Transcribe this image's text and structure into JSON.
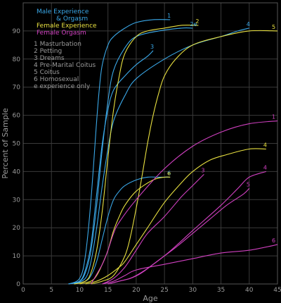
{
  "chart_data": {
    "type": "line",
    "xlabel": "Age",
    "ylabel": "Percent of Sample",
    "xlim": [
      0,
      45
    ],
    "ylim": [
      0,
      100
    ],
    "xticks": [
      0,
      5,
      10,
      15,
      20,
      25,
      30,
      35,
      40,
      45
    ],
    "yticks": [
      0,
      10,
      20,
      30,
      40,
      50,
      60,
      70,
      80,
      90
    ],
    "grid": true,
    "legend_placement": "top-left",
    "legend": {
      "groups": [
        {
          "label": "Male Experience",
          "label2": "& Orgasm",
          "color": "#3aa8e8"
        },
        {
          "label": "Female Experience",
          "color": "#e8e040"
        },
        {
          "label": "Female Orgasm",
          "color": "#d040c0"
        }
      ],
      "keys": [
        "1 Masturbation",
        "2 Petting",
        "3 Dreams",
        "4 Pre-Marital Coitus",
        "5 Coitus",
        "6 Homosexual",
        "e experience only"
      ]
    },
    "series": [
      {
        "group": "male",
        "label": "1",
        "color": "#3aa8e8",
        "x": [
          8,
          10,
          11,
          12,
          13,
          13.5,
          14,
          15,
          16,
          18,
          20,
          23,
          26
        ],
        "y": [
          0,
          2,
          10,
          30,
          58,
          70,
          78,
          85,
          88,
          91,
          93,
          94,
          94
        ]
      },
      {
        "group": "male",
        "label": "2e",
        "color": "#3aa8e8",
        "x": [
          8,
          10,
          11,
          12,
          13,
          14,
          15,
          16,
          18,
          20,
          24,
          28,
          30
        ],
        "y": [
          0,
          1,
          4,
          12,
          28,
          48,
          65,
          76,
          84,
          88,
          90,
          91,
          91
        ]
      },
      {
        "group": "male",
        "label": "3",
        "color": "#3aa8e8",
        "x": [
          8,
          10,
          11,
          12,
          13,
          14,
          15,
          16,
          18,
          20,
          22,
          23
        ],
        "y": [
          0,
          1,
          5,
          14,
          32,
          50,
          62,
          69,
          74,
          78,
          81,
          83
        ]
      },
      {
        "group": "male",
        "label": "4",
        "color": "#3aa8e8",
        "x": [
          9,
          11,
          12,
          13,
          14,
          15,
          16,
          18,
          20,
          25,
          30,
          35,
          38,
          40
        ],
        "y": [
          0,
          2,
          8,
          20,
          35,
          48,
          58,
          67,
          73,
          80,
          85,
          88,
          90,
          91
        ]
      },
      {
        "group": "male",
        "label": "6",
        "color": "#3aa8e8",
        "x": [
          9,
          11,
          12,
          13,
          14,
          15,
          16,
          17,
          18,
          20,
          22,
          24,
          26
        ],
        "y": [
          0,
          1,
          3,
          8,
          16,
          24,
          30,
          33,
          35,
          37,
          38,
          38,
          38
        ]
      },
      {
        "group": "female",
        "label": "2",
        "color": "#e8e040",
        "x": [
          9,
          11,
          12,
          13,
          14,
          15,
          16,
          17,
          18,
          20,
          22,
          25,
          28,
          31
        ],
        "y": [
          0,
          1,
          4,
          12,
          26,
          45,
          62,
          74,
          82,
          88,
          90,
          91,
          92,
          92
        ]
      },
      {
        "group": "female",
        "label": "5",
        "color": "#e8e040",
        "x": [
          12,
          14,
          16,
          18,
          19,
          20,
          21,
          22,
          23,
          24,
          25,
          27,
          30,
          35,
          40,
          45
        ],
        "y": [
          0,
          1,
          3,
          10,
          17,
          27,
          38,
          50,
          60,
          68,
          74,
          80,
          85,
          88,
          90,
          90
        ]
      },
      {
        "group": "female",
        "label": "4",
        "color": "#e8e040",
        "x": [
          11,
          13,
          15,
          17,
          18,
          20,
          22,
          25,
          28,
          30,
          33,
          36,
          40,
          43
        ],
        "y": [
          0,
          1,
          3,
          6,
          8,
          14,
          20,
          29,
          36,
          40,
          44,
          46,
          48,
          48
        ]
      },
      {
        "group": "female",
        "label": "e",
        "color": "#e8e040",
        "x": [
          10,
          12,
          13,
          14,
          15,
          16,
          17,
          18,
          20,
          23,
          25,
          26
        ],
        "y": [
          0,
          1,
          3,
          7,
          12,
          19,
          24,
          28,
          33,
          37,
          38,
          38
        ]
      },
      {
        "group": "female-orgasm",
        "label": "1",
        "color": "#d040c0",
        "x": [
          12,
          14,
          15,
          16,
          17,
          20,
          25,
          30,
          35,
          40,
          45
        ],
        "y": [
          0,
          7,
          12,
          18,
          22,
          30,
          41,
          49,
          54,
          57,
          58
        ]
      },
      {
        "group": "female-orgasm",
        "label": "4",
        "color": "#d040c0",
        "x": [
          15,
          17,
          20,
          25,
          30,
          35,
          38,
          40,
          43
        ],
        "y": [
          0,
          1,
          3,
          10,
          19,
          28,
          34,
          38,
          40
        ]
      },
      {
        "group": "female-orgasm",
        "label": "3",
        "color": "#d040c0",
        "x": [
          14,
          16,
          18,
          20,
          22,
          25,
          28,
          30,
          32
        ],
        "y": [
          0,
          2,
          6,
          12,
          18,
          24,
          31,
          35,
          39
        ]
      },
      {
        "group": "female-orgasm",
        "label": "5",
        "color": "#d040c0",
        "x": [
          15,
          17,
          19,
          21,
          23,
          25,
          27,
          30,
          33,
          36,
          39,
          40
        ],
        "y": [
          0,
          1,
          2,
          4,
          7,
          10,
          13,
          18,
          23,
          28,
          32,
          34
        ]
      },
      {
        "group": "female-orgasm",
        "label": "6",
        "color": "#d040c0",
        "x": [
          14,
          16,
          18,
          20,
          25,
          30,
          35,
          40,
          45
        ],
        "y": [
          0,
          1,
          3,
          5,
          7,
          9,
          11,
          12,
          14
        ]
      }
    ]
  }
}
